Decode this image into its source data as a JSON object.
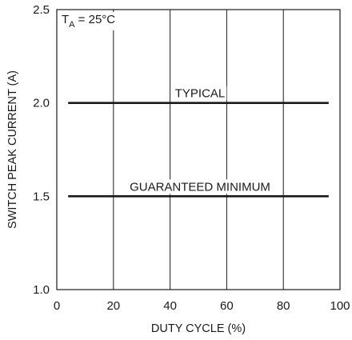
{
  "chart_data": {
    "type": "line",
    "title": "",
    "xlabel": "DUTY CYCLE (%)",
    "ylabel": "SWITCH PEAK CURRENT (A)",
    "xlim": [
      0,
      100
    ],
    "ylim": [
      1.0,
      2.5
    ],
    "xticks": [
      "0",
      "20",
      "40",
      "60",
      "80",
      "100"
    ],
    "yticks": [
      "1.0",
      "1.5",
      "2.0",
      "2.5"
    ],
    "grid": "vertical",
    "annotation": {
      "prefix": "T",
      "subscript": "A",
      "suffix": " = 25°C"
    },
    "series": [
      {
        "name": "TYPICAL",
        "x": [
          4,
          96
        ],
        "y": [
          2.0,
          2.0
        ]
      },
      {
        "name": "GUARANTEED MINIMUM",
        "x": [
          4,
          96
        ],
        "y": [
          1.5,
          1.5
        ]
      }
    ]
  }
}
